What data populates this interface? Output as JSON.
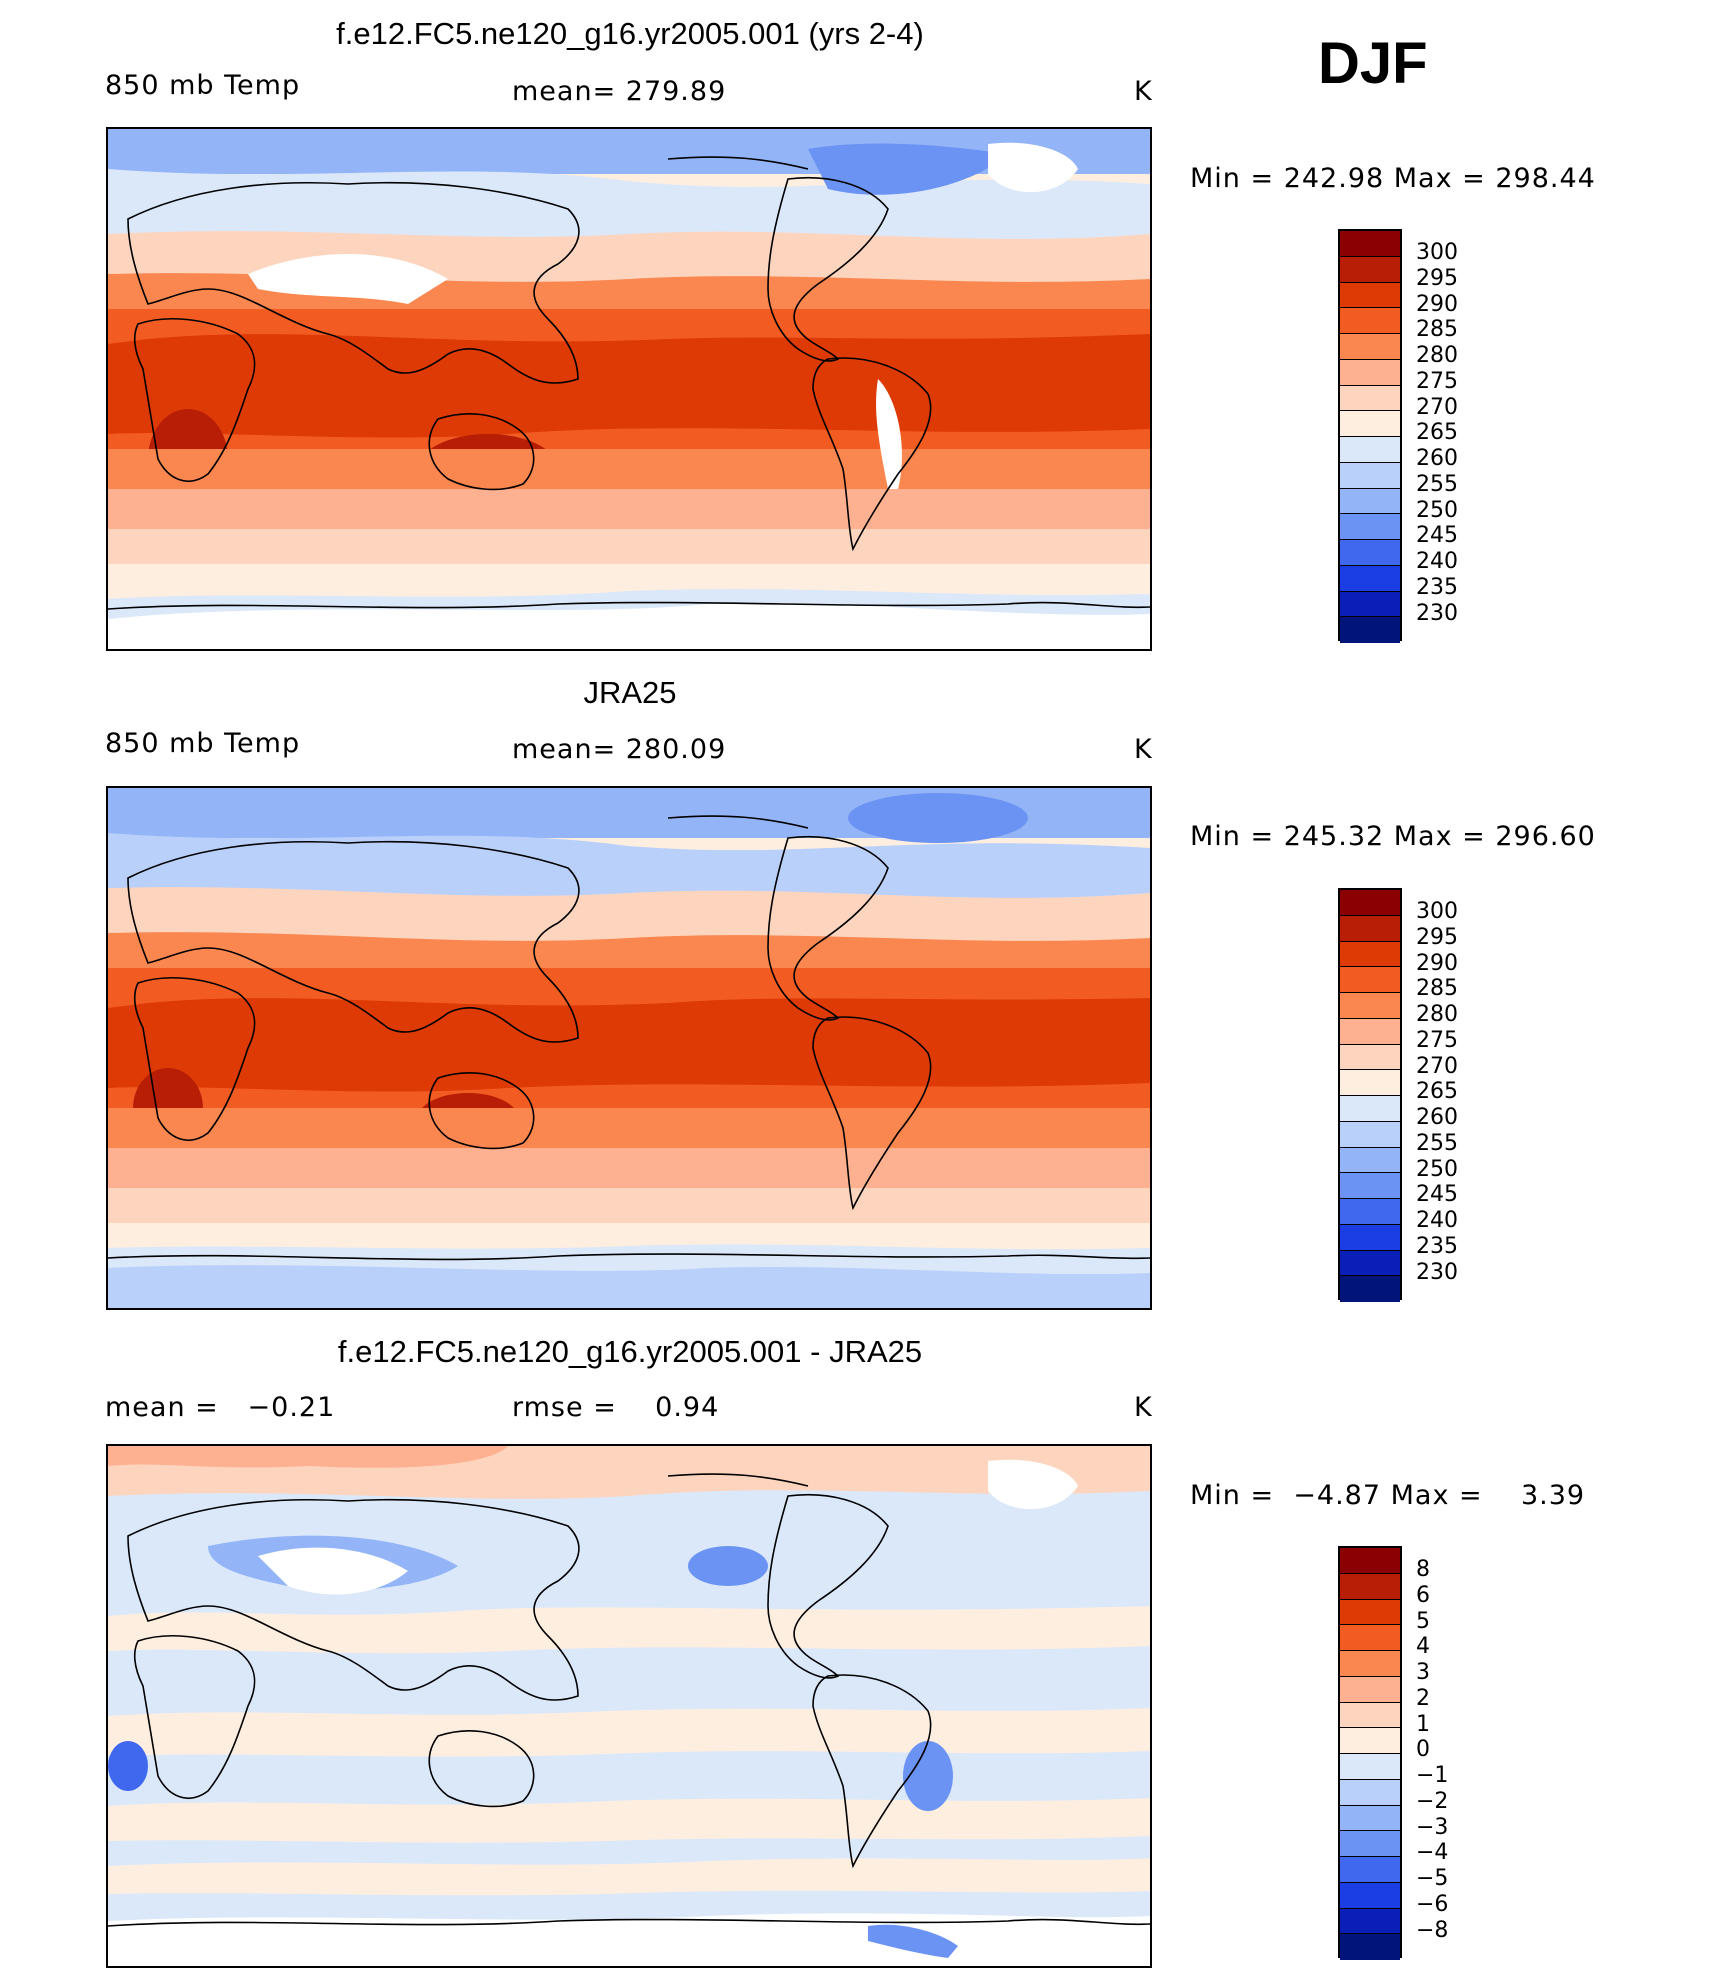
{
  "season": "DJF",
  "panels": [
    {
      "id": "model",
      "title": "f.e12.FC5.ne120_g16.yr2005.001 (yrs 2-4)",
      "left_label": "850 mb Temp",
      "center_label": "mean= 279.89",
      "units": "K",
      "minmax": "Min = 242.98 Max = 298.44",
      "colorbar": {
        "labels": [
          "300",
          "295",
          "290",
          "285",
          "280",
          "275",
          "270",
          "265",
          "260",
          "255",
          "250",
          "245",
          "240",
          "235",
          "230"
        ],
        "colors": [
          "#8b0000",
          "#b81d05",
          "#dd3a05",
          "#f25c22",
          "#fb8750",
          "#fdb190",
          "#fdd5bf",
          "#fdeedf",
          "#dbe8fa",
          "#b9d0fa",
          "#93b5f8",
          "#6b93f3",
          "#3f68ef",
          "#1a3de4",
          "#0a1fb8",
          "#00147a"
        ]
      }
    },
    {
      "id": "obs",
      "title": "JRA25",
      "left_label": "850 mb Temp",
      "center_label": "mean= 280.09",
      "units": "K",
      "minmax": "Min = 245.32 Max = 296.60",
      "colorbar": {
        "labels": [
          "300",
          "295",
          "290",
          "285",
          "280",
          "275",
          "270",
          "265",
          "260",
          "255",
          "250",
          "245",
          "240",
          "235",
          "230"
        ],
        "colors": [
          "#8b0000",
          "#b81d05",
          "#dd3a05",
          "#f25c22",
          "#fb8750",
          "#fdb190",
          "#fdd5bf",
          "#fdeedf",
          "#dbe8fa",
          "#b9d0fa",
          "#93b5f8",
          "#6b93f3",
          "#3f68ef",
          "#1a3de4",
          "#0a1fb8",
          "#00147a"
        ]
      }
    },
    {
      "id": "diff",
      "title": "f.e12.FC5.ne120_g16.yr2005.001 - JRA25",
      "left_label": "mean =   −0.21",
      "center_label": "rmse =    0.94",
      "units": "K",
      "minmax": "Min =  −4.87 Max =    3.39",
      "colorbar": {
        "labels": [
          "8",
          "6",
          "5",
          "4",
          "3",
          "2",
          "1",
          "0",
          "−1",
          "−2",
          "−3",
          "−4",
          "−5",
          "−6",
          "−8"
        ],
        "colors": [
          "#8b0000",
          "#b81d05",
          "#dd3a05",
          "#f25c22",
          "#fb8750",
          "#fdb190",
          "#fdd5bf",
          "#fdeedf",
          "#dbe8fa",
          "#b9d0fa",
          "#93b5f8",
          "#6b93f3",
          "#3f68ef",
          "#1a3de4",
          "#0a1fb8",
          "#00147a"
        ]
      }
    }
  ]
}
